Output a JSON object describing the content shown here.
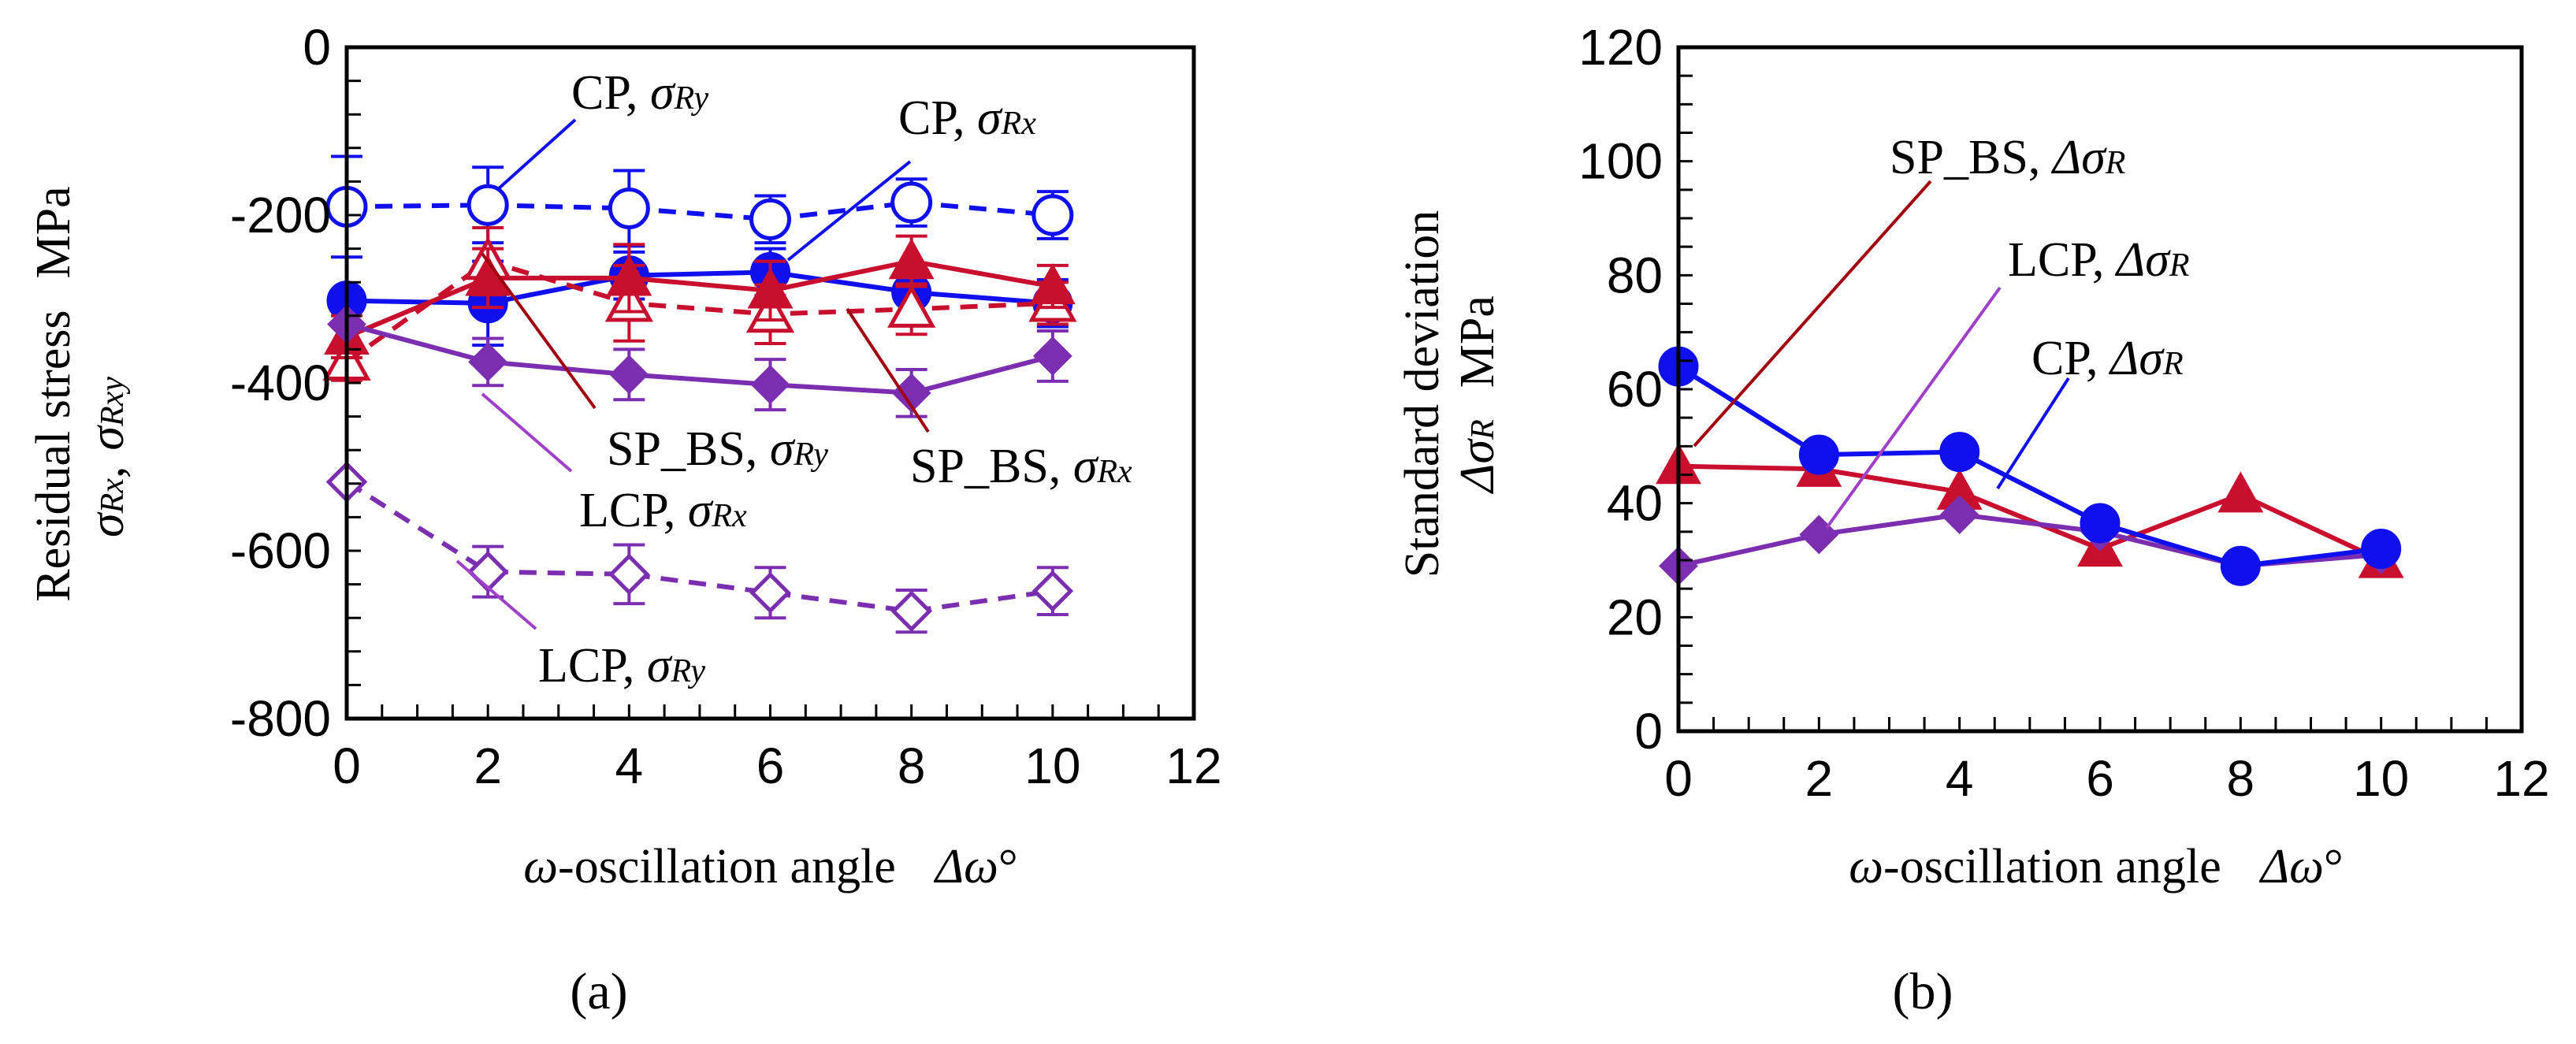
{
  "colors": {
    "cp": "#1010ee",
    "sp": "#c8102e",
    "lcp": "#7b2fb0",
    "sp_line": "#a00010",
    "lcp_line": "#a040c8"
  },
  "chart_data": [
    {
      "panel_label": "(a)",
      "type": "line",
      "x": [
        0,
        2,
        4,
        6,
        8,
        10
      ],
      "xlim": [
        0,
        12
      ],
      "xticks": [
        "0",
        "2",
        "4",
        "6",
        "8",
        "10",
        "12"
      ],
      "ylim": [
        -800,
        0
      ],
      "yticks": [
        "0",
        "-200",
        "-400",
        "-600",
        "-800"
      ],
      "xlabel": {
        "prefix": "ω",
        "text": "-oscillation angle",
        "symbol": "Δω",
        "unit": "°"
      },
      "ylabel": {
        "line1": "Residual stress",
        "unit": "MPa",
        "sym1": "σ",
        "sub1": "Rx",
        "sep": ",",
        "sym2": "σ",
        "sub2": "Rxy"
      },
      "series": [
        {
          "name": "CP, σRy",
          "color_key": "cp",
          "marker": "circle",
          "filled": false,
          "dashed": true,
          "values": [
            -190,
            -188,
            -192,
            -205,
            -185,
            -200
          ],
          "errors": [
            60,
            45,
            45,
            28,
            28,
            28
          ]
        },
        {
          "name": "CP, σRx",
          "color_key": "cp",
          "marker": "circle",
          "filled": true,
          "dashed": false,
          "values": [
            -302,
            -305,
            -272,
            -268,
            -292,
            -305
          ],
          "errors": [
            0,
            50,
            28,
            28,
            28,
            28
          ]
        },
        {
          "name": "SP_BS, σRy",
          "color_key": "sp",
          "marker": "triangle",
          "filled": false,
          "dashed": true,
          "values": [
            -375,
            -255,
            -305,
            -318,
            -312,
            -305
          ],
          "errors": [
            22,
            40,
            45,
            35,
            30,
            25
          ]
        },
        {
          "name": "SP_BS, σRx",
          "color_key": "sp",
          "marker": "triangle",
          "filled": true,
          "dashed": false,
          "values": [
            -345,
            -275,
            -275,
            -290,
            -255,
            -285
          ],
          "errors": [
            25,
            35,
            40,
            35,
            30,
            25
          ]
        },
        {
          "name": "LCP, σRx",
          "color_key": "lcp",
          "marker": "diamond",
          "filled": true,
          "dashed": false,
          "values": [
            -330,
            -375,
            -390,
            -402,
            -412,
            -368
          ],
          "errors": [
            0,
            28,
            30,
            30,
            28,
            30
          ]
        },
        {
          "name": "LCP, σRy",
          "color_key": "lcp",
          "marker": "diamond",
          "filled": false,
          "dashed": true,
          "values": [
            -518,
            -625,
            -628,
            -650,
            -672,
            -648
          ],
          "errors": [
            0,
            30,
            35,
            30,
            25,
            28
          ]
        }
      ],
      "annotations": [
        {
          "sym": "CP, ",
          "greek": "σ",
          "sub": "Ry"
        },
        {
          "sym": "CP, ",
          "greek": "σ",
          "sub": "Rx"
        },
        {
          "sym": "SP_BS, ",
          "greek": "σ",
          "sub": "Ry"
        },
        {
          "sym": "SP_BS, ",
          "greek": "σ",
          "sub": "Rx"
        },
        {
          "sym": "LCP, ",
          "greek": "σ",
          "sub": "Rx"
        },
        {
          "sym": "LCP, ",
          "greek": "σ",
          "sub": "Ry"
        }
      ]
    },
    {
      "panel_label": "(b)",
      "type": "line",
      "x": [
        0,
        2,
        4,
        6,
        8,
        10
      ],
      "xlim": [
        0,
        12
      ],
      "xticks": [
        "0",
        "2",
        "4",
        "6",
        "8",
        "10",
        "12"
      ],
      "ylim": [
        0,
        120
      ],
      "yticks": [
        "0",
        "20",
        "40",
        "60",
        "80",
        "100",
        "120"
      ],
      "xlabel": {
        "prefix": "ω",
        "text": "-oscillation angle",
        "symbol": "Δω",
        "unit": "°"
      },
      "ylabel": {
        "line1": "Standard deviation",
        "sym1": "Δσ",
        "sub1": "R",
        "unit": "MPa"
      },
      "series": [
        {
          "name": "SP_BS, ΔσR",
          "color_key": "sp",
          "marker": "triangle",
          "filled": true,
          "values": [
            46.5,
            46,
            42,
            32,
            41.5,
            30
          ]
        },
        {
          "name": "LCP, ΔσR",
          "color_key": "lcp",
          "marker": "diamond",
          "filled": true,
          "values": [
            29,
            34.5,
            38,
            35,
            29,
            31
          ]
        },
        {
          "name": "CP, ΔσR",
          "color_key": "cp",
          "marker": "circle",
          "filled": true,
          "values": [
            64,
            48.5,
            49,
            36.5,
            29,
            32
          ]
        }
      ],
      "annotations": [
        {
          "sym": "SP_BS, ",
          "greek": "Δσ",
          "sub": "R"
        },
        {
          "sym": "LCP, ",
          "greek": "Δσ",
          "sub": "R"
        },
        {
          "sym": "CP, ",
          "greek": "Δσ",
          "sub": "R"
        }
      ]
    }
  ]
}
